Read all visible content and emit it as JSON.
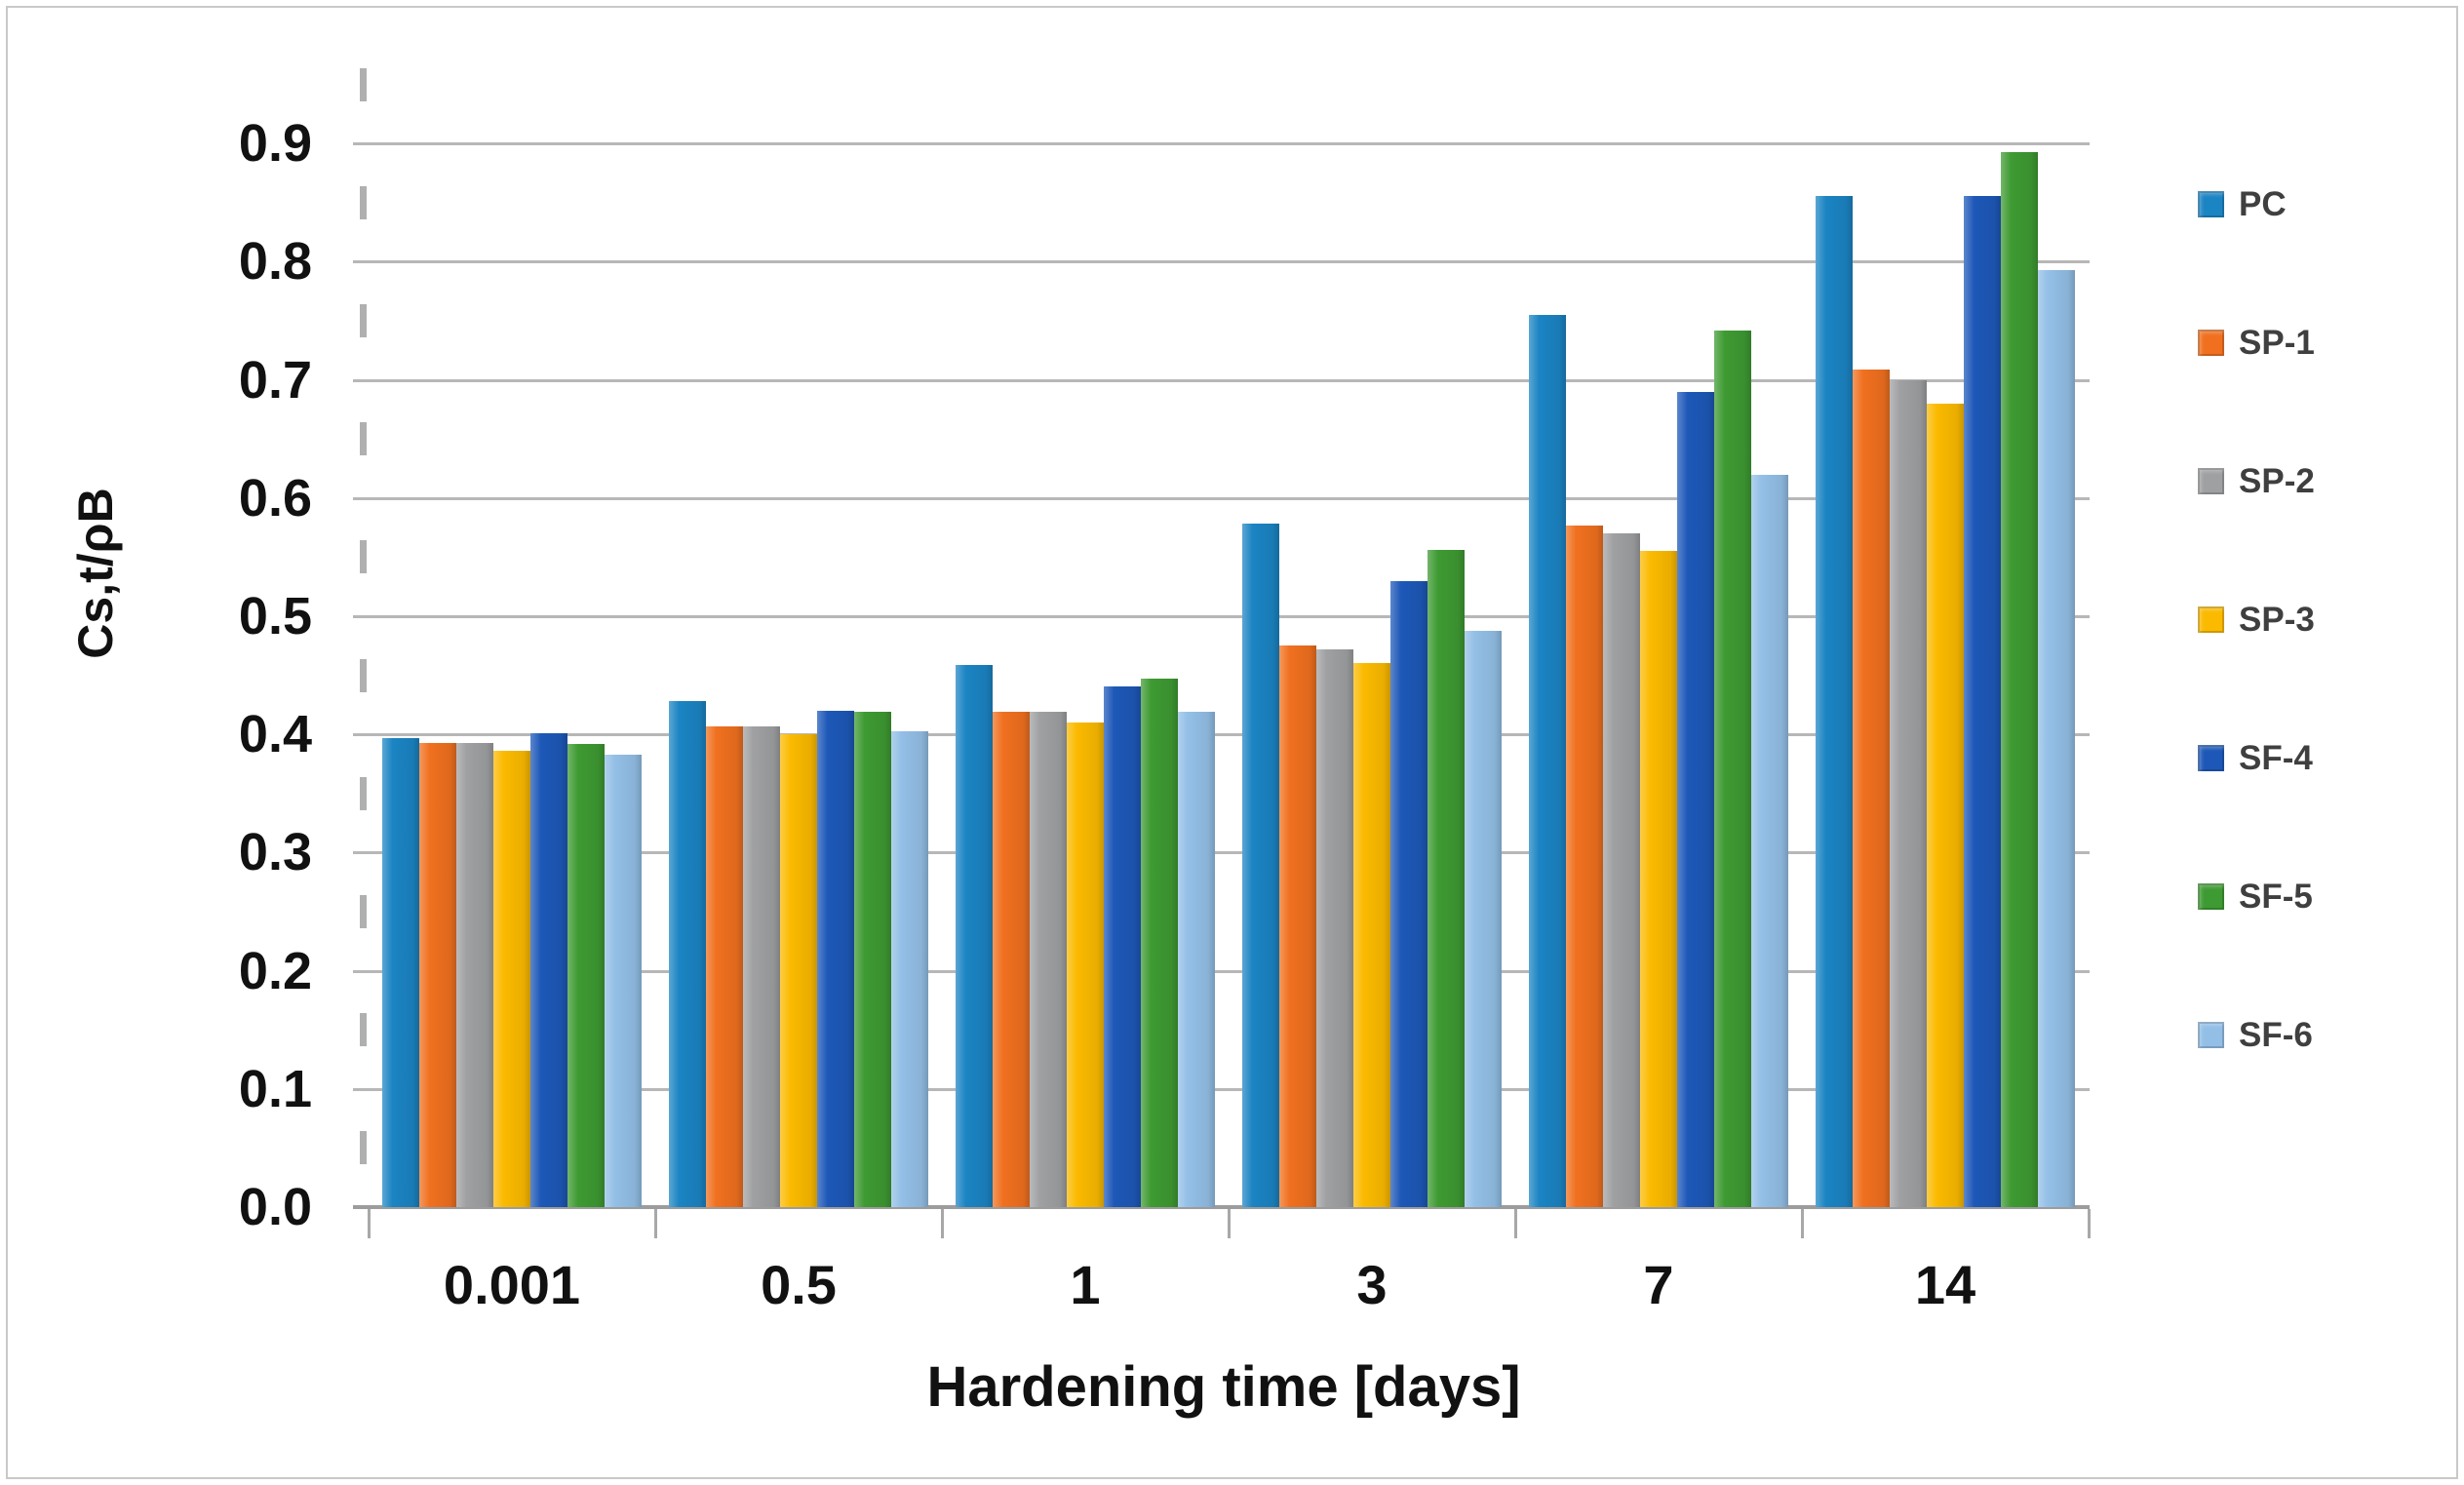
{
  "figure": {
    "background": "#ffffff",
    "border_color": "#c9c9c9"
  },
  "chart_data": {
    "type": "bar",
    "title": "",
    "xlabel": "Hardening time [days]",
    "ylabel": "Cs,t/ρB",
    "categories": [
      "0.001",
      "0.5",
      "1",
      "3",
      "7",
      "14"
    ],
    "series": [
      {
        "name": "PC",
        "color": "#1b84c3",
        "values": [
          0.397,
          0.428,
          0.459,
          0.578,
          0.755,
          0.856
        ]
      },
      {
        "name": "SP-1",
        "color": "#f0701f",
        "values": [
          0.393,
          0.407,
          0.419,
          0.475,
          0.577,
          0.709
        ]
      },
      {
        "name": "SP-2",
        "color": "#9fa0a2",
        "values": [
          0.393,
          0.407,
          0.419,
          0.472,
          0.57,
          0.7
        ]
      },
      {
        "name": "SP-3",
        "color": "#fbba00",
        "values": [
          0.386,
          0.4,
          0.41,
          0.46,
          0.555,
          0.68
        ]
      },
      {
        "name": "SF-4",
        "color": "#1d58b8",
        "values": [
          0.401,
          0.42,
          0.441,
          0.53,
          0.69,
          0.856
        ]
      },
      {
        "name": "SF-5",
        "color": "#3e9a32",
        "values": [
          0.392,
          0.419,
          0.447,
          0.556,
          0.742,
          0.893
        ]
      },
      {
        "name": "SF-6",
        "color": "#93bfe6",
        "values": [
          0.383,
          0.403,
          0.419,
          0.488,
          0.62,
          0.793
        ]
      }
    ],
    "ylim": [
      0,
      0.95
    ],
    "yticks": [
      0.0,
      0.1,
      0.2,
      0.3,
      0.4,
      0.5,
      0.6,
      0.7,
      0.8,
      0.9
    ],
    "ytick_label_format": "one_decimal",
    "grid": true,
    "legend_position": "right"
  },
  "colors": {
    "gridline": "#b7b7b7",
    "axis_line": "#9c9c9c",
    "tick": "#a8a8a8",
    "text": "#111111",
    "legend_text": "#3f3f3f"
  }
}
